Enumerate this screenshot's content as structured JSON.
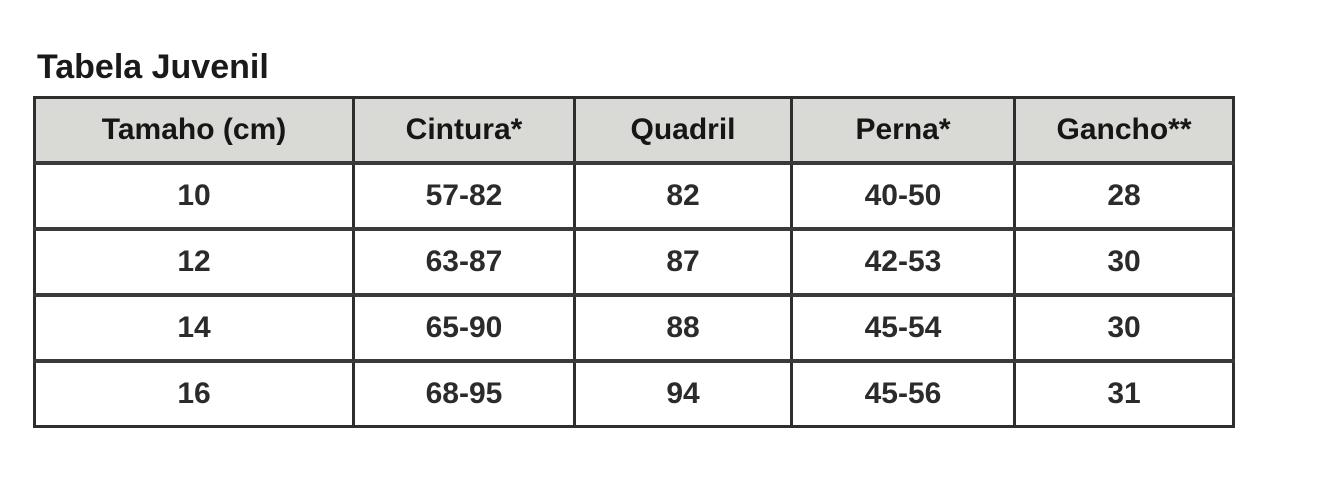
{
  "page": {
    "title": "Tabela Juvenil"
  },
  "table": {
    "headers": [
      "Tamaho (cm)",
      "Cintura*",
      "Quadril",
      "Perna*",
      "Gancho**"
    ],
    "rows": [
      [
        "10",
        "57-82",
        "82",
        "40-50",
        "28"
      ],
      [
        "12",
        "63-87",
        "87",
        "42-53",
        "30"
      ],
      [
        "14",
        "65-90",
        "88",
        "45-54",
        "30"
      ],
      [
        "16",
        "68-95",
        "94",
        "45-56",
        "31"
      ]
    ]
  },
  "colors": {
    "header_background": "#d9d9d6",
    "border": "#2e2e2e",
    "text": "#1f1f1f",
    "page_background": "#ffffff"
  },
  "chart_data": {
    "type": "table",
    "title": "Tabela Juvenil",
    "columns": [
      "Tamaho (cm)",
      "Cintura*",
      "Quadril",
      "Perna*",
      "Gancho**"
    ],
    "rows": [
      {
        "tamanho": "10",
        "cintura": "57-82",
        "quadril": "82",
        "perna": "40-50",
        "gancho": "28"
      },
      {
        "tamanho": "12",
        "cintura": "63-87",
        "quadril": "87",
        "perna": "42-53",
        "gancho": "30"
      },
      {
        "tamanho": "14",
        "cintura": "65-90",
        "quadril": "88",
        "perna": "45-54",
        "gancho": "30"
      },
      {
        "tamanho": "16",
        "cintura": "68-95",
        "quadril": "94",
        "perna": "45-56",
        "gancho": "31"
      }
    ]
  }
}
